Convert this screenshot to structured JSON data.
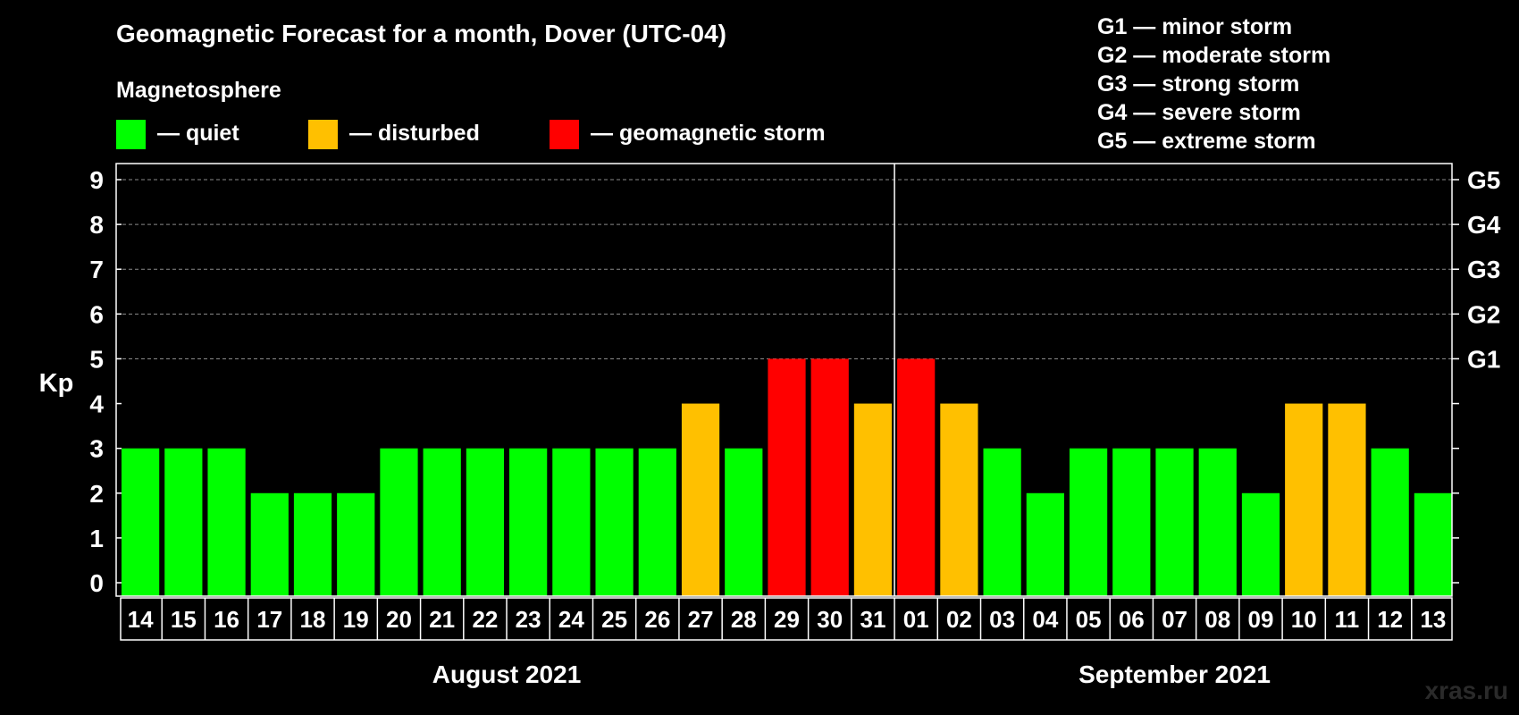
{
  "chart_data": {
    "type": "bar",
    "title": "Geomagnetic Forecast for a month, Dover (UTC-04)",
    "ylabel": "Kp",
    "ylim": [
      0,
      9
    ],
    "y_ticks": [
      "0",
      "1",
      "2",
      "3",
      "4",
      "5",
      "6",
      "7",
      "8",
      "9"
    ],
    "right_ticks": [
      {
        "kp": 5,
        "label": "G1"
      },
      {
        "kp": 6,
        "label": "G2"
      },
      {
        "kp": 7,
        "label": "G3"
      },
      {
        "kp": 8,
        "label": "G4"
      },
      {
        "kp": 9,
        "label": "G5"
      }
    ],
    "categories": [
      "14",
      "15",
      "16",
      "17",
      "18",
      "19",
      "20",
      "21",
      "22",
      "23",
      "24",
      "25",
      "26",
      "27",
      "28",
      "29",
      "30",
      "31",
      "01",
      "02",
      "03",
      "04",
      "05",
      "06",
      "07",
      "08",
      "09",
      "10",
      "11",
      "12",
      "13"
    ],
    "values": [
      3,
      3,
      3,
      2,
      2,
      2,
      3,
      3,
      3,
      3,
      3,
      3,
      3,
      4,
      3,
      5,
      5,
      4,
      5,
      4,
      3,
      2,
      3,
      3,
      3,
      3,
      2,
      4,
      4,
      3,
      2
    ],
    "months": [
      {
        "label": "August 2021",
        "first_index": 0,
        "last_index": 17
      },
      {
        "label": "September 2021",
        "first_index": 18,
        "last_index": 30
      }
    ],
    "legend_title": "Magnetosphere",
    "legend": [
      {
        "label": "— quiet",
        "color": "#00ff00",
        "max_kp": 3
      },
      {
        "label": "— disturbed",
        "color": "#ffc000",
        "max_kp": 4
      },
      {
        "label": "— geomagnetic storm",
        "color": "#ff0000",
        "max_kp": 9
      }
    ],
    "storm_scale": [
      "G1 — minor storm",
      "G2 — moderate storm",
      "G3 — strong storm",
      "G4 — severe storm",
      "G5 — extreme storm"
    ],
    "watermark": "xras.ru"
  }
}
